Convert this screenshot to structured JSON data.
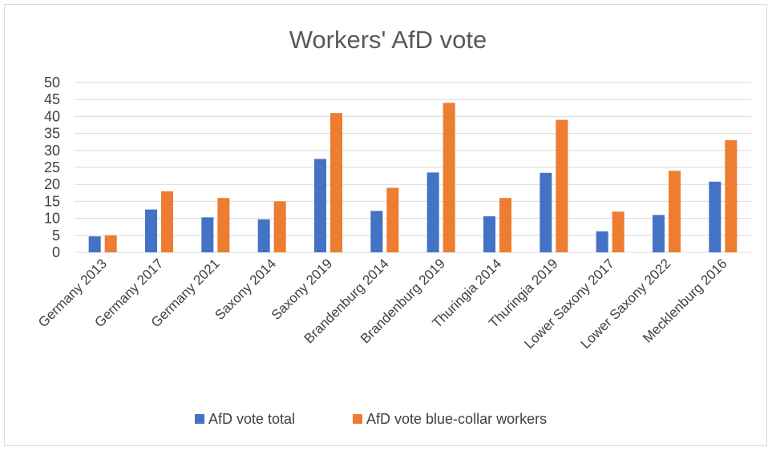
{
  "chart_data": {
    "type": "bar",
    "title": "Workers' AfD vote",
    "ylim": [
      0,
      50
    ],
    "yticks": [
      0,
      5,
      10,
      15,
      20,
      25,
      30,
      35,
      40,
      45,
      50
    ],
    "grid": true,
    "legend_position": "bottom",
    "categories": [
      "Germany 2013",
      "Germany 2017",
      "Germany 2021",
      "Saxony 2014",
      "Saxony 2019",
      "Brandenburg 2014",
      "Brandenburg 2019",
      "Thuringia 2014",
      "Thuringia 2019",
      "Lower Saxony 2017",
      "Lower Saxony 2022",
      "Mecklenburg 2016"
    ],
    "series": [
      {
        "name": "AfD vote total",
        "color": "#4472c4",
        "values": [
          4.7,
          12.6,
          10.3,
          9.7,
          27.5,
          12.2,
          23.5,
          10.6,
          23.4,
          6.2,
          11.0,
          20.8
        ]
      },
      {
        "name": "AfD vote blue-collar workers",
        "color": "#ed7d31",
        "values": [
          5,
          18,
          16,
          15,
          41,
          19,
          44,
          16,
          39,
          12,
          24,
          33
        ]
      }
    ]
  }
}
